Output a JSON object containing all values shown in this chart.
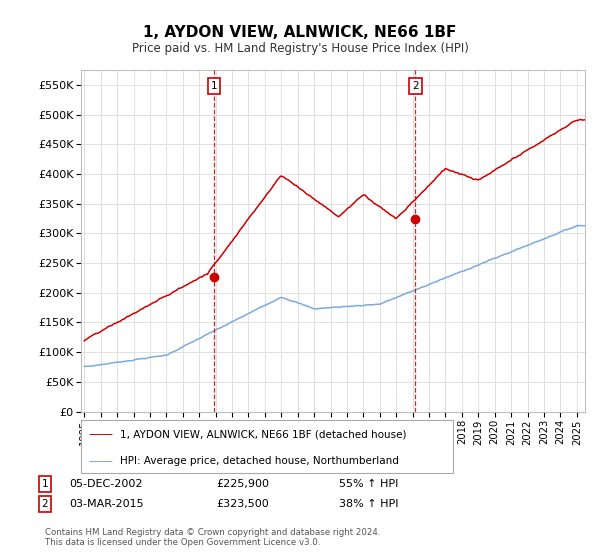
{
  "title": "1, AYDON VIEW, ALNWICK, NE66 1BF",
  "subtitle": "Price paid vs. HM Land Registry's House Price Index (HPI)",
  "ylabel_ticks": [
    "£0",
    "£50K",
    "£100K",
    "£150K",
    "£200K",
    "£250K",
    "£300K",
    "£350K",
    "£400K",
    "£450K",
    "£500K",
    "£550K"
  ],
  "ytick_values": [
    0,
    50000,
    100000,
    150000,
    200000,
    250000,
    300000,
    350000,
    400000,
    450000,
    500000,
    550000
  ],
  "ylim": [
    0,
    575000
  ],
  "legend_label_red": "1, AYDON VIEW, ALNWICK, NE66 1BF (detached house)",
  "legend_label_blue": "HPI: Average price, detached house, Northumberland",
  "sale1_date": "05-DEC-2002",
  "sale1_price": 225900,
  "sale1_price_str": "£225,900",
  "sale1_pct": "55% ↑ HPI",
  "sale2_date": "03-MAR-2015",
  "sale2_price": 323500,
  "sale2_price_str": "£323,500",
  "sale2_pct": "38% ↑ HPI",
  "footer": "Contains HM Land Registry data © Crown copyright and database right 2024.\nThis data is licensed under the Open Government Licence v3.0.",
  "red_color": "#cc0000",
  "blue_color": "#7aaadd",
  "vline_color": "#cc0000",
  "background_color": "#ffffff",
  "grid_color": "#e0e0e0",
  "sale1_year": 2002.917,
  "sale2_year": 2015.167
}
